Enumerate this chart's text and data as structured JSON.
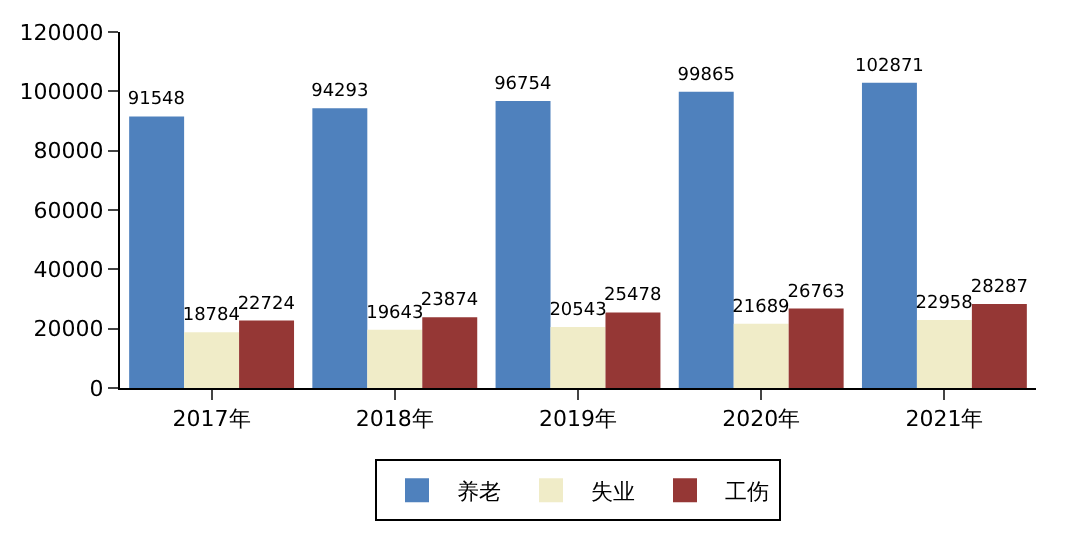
{
  "chart_data": {
    "type": "bar",
    "categories": [
      "2017年",
      "2018年",
      "2019年",
      "2020年",
      "2021年"
    ],
    "series": [
      {
        "name": "养老",
        "color": "#4f81bd",
        "values": [
          91548,
          94293,
          96754,
          99865,
          102871
        ]
      },
      {
        "name": "失业",
        "color": "#f0ecc8",
        "values": [
          18784,
          19643,
          20543,
          21689,
          22958
        ]
      },
      {
        "name": "工伤",
        "color": "#953735",
        "values": [
          22724,
          23874,
          25478,
          26763,
          28287
        ]
      }
    ],
    "ylim": [
      0,
      120000
    ],
    "yticks": [
      0,
      20000,
      40000,
      60000,
      80000,
      100000,
      120000
    ],
    "data_labels": true,
    "legend": "bottom"
  }
}
